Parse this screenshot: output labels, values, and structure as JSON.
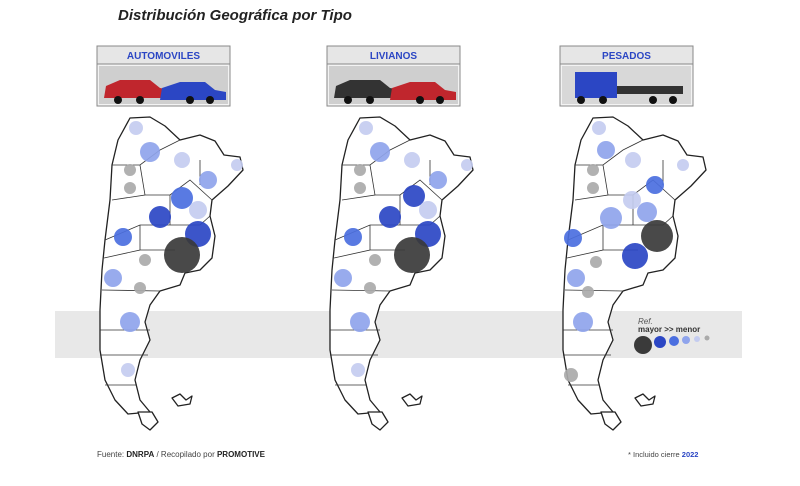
{
  "title": "Distribución Geográfica por Tipo",
  "panels": [
    {
      "label": "AUTOMOVILES"
    },
    {
      "label": "LIVIANOS"
    },
    {
      "label": "PESADOS"
    }
  ],
  "legend": {
    "ref": "Ref.",
    "scale": "mayor >> menor"
  },
  "footer": {
    "source_prefix": "Fuente:",
    "source": "DNRPA",
    "compiled_prefix": "/ Recopilado por",
    "compiled": "PROMOTIVE",
    "note_prefix": "* Incluido cierre",
    "note_year": "2022"
  }
}
